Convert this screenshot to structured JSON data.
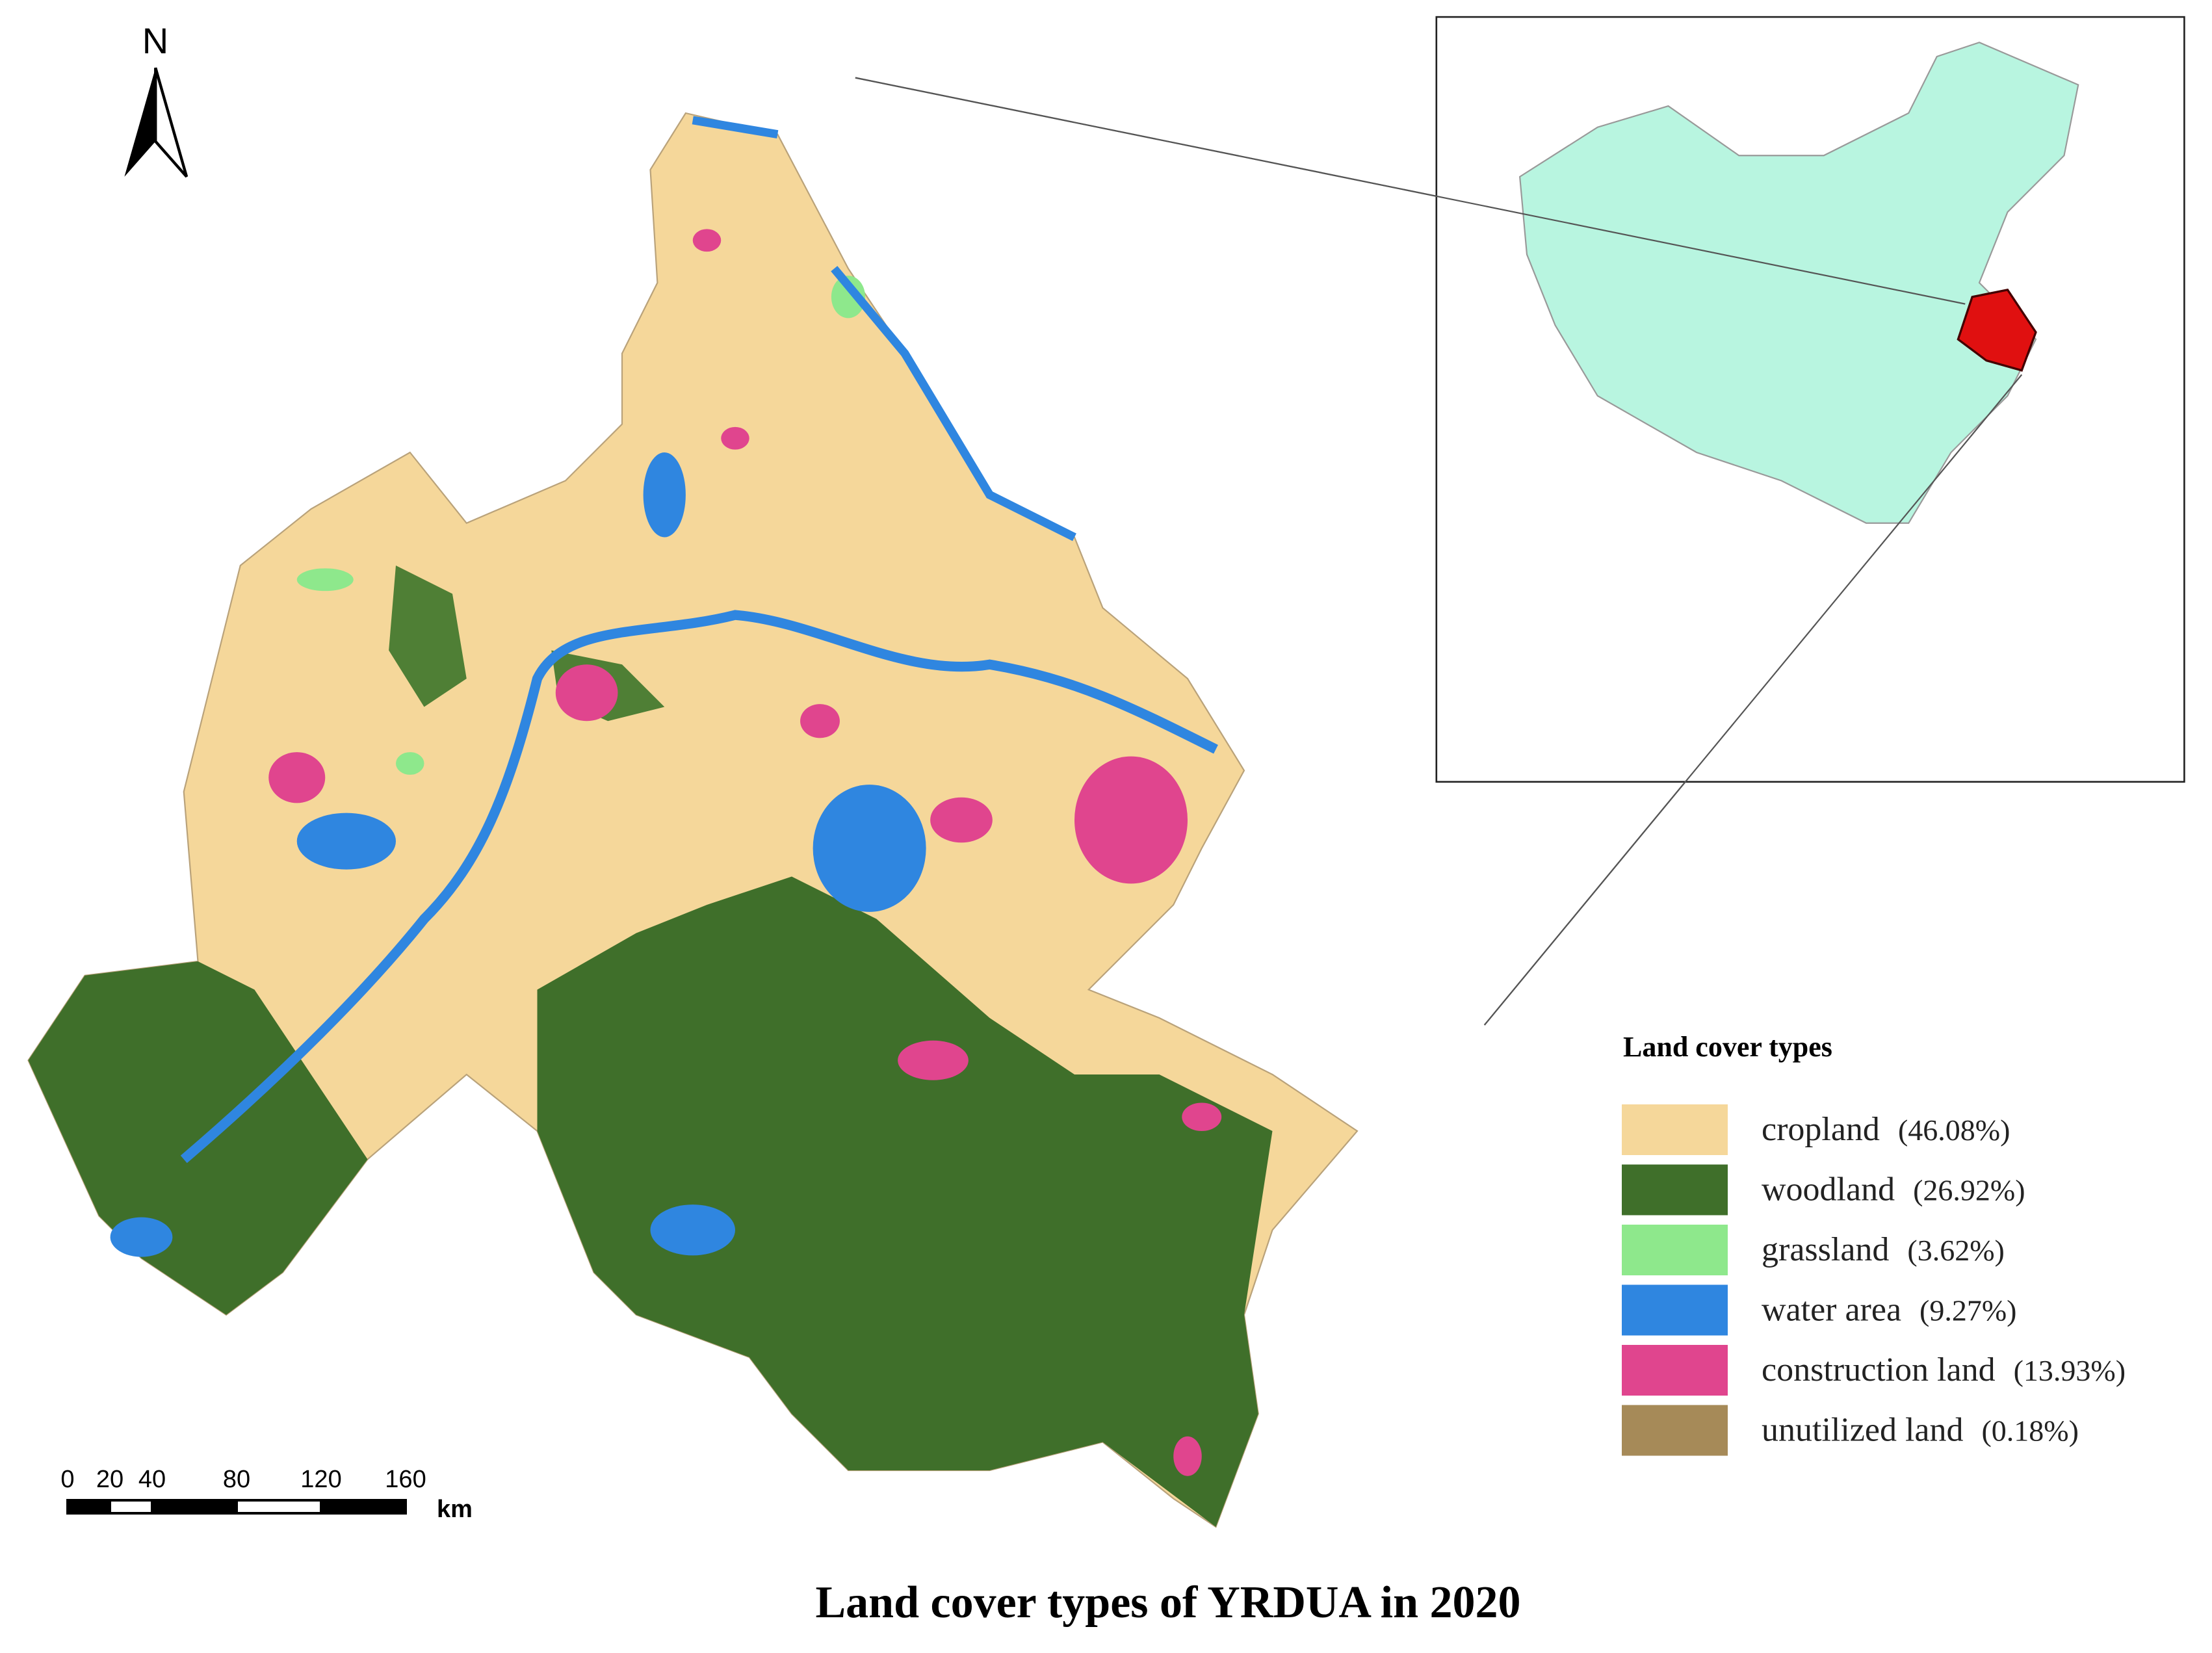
{
  "title": "Land cover types of YRDUA in 2020",
  "north_label": "N",
  "scale_bar": {
    "ticks": [
      0,
      20,
      40,
      80,
      120,
      160
    ],
    "unit": "km"
  },
  "legend": {
    "title": "Land cover types",
    "items": [
      {
        "name": "cropland",
        "share": "(46.08%)",
        "color": "#f5d79a"
      },
      {
        "name": "woodland",
        "share": "(26.92%)",
        "color": "#3f6f2a"
      },
      {
        "name": "grassland",
        "share": "(3.62%)",
        "color": "#8ee88c"
      },
      {
        "name": "water area",
        "share": "(9.27%)",
        "color": "#2f86e0"
      },
      {
        "name": "construction land",
        "share": "(13.93%)",
        "color": "#e0458e"
      },
      {
        "name": "unutilized land",
        "share": "(0.18%)",
        "color": "#a68a58"
      }
    ]
  }
}
